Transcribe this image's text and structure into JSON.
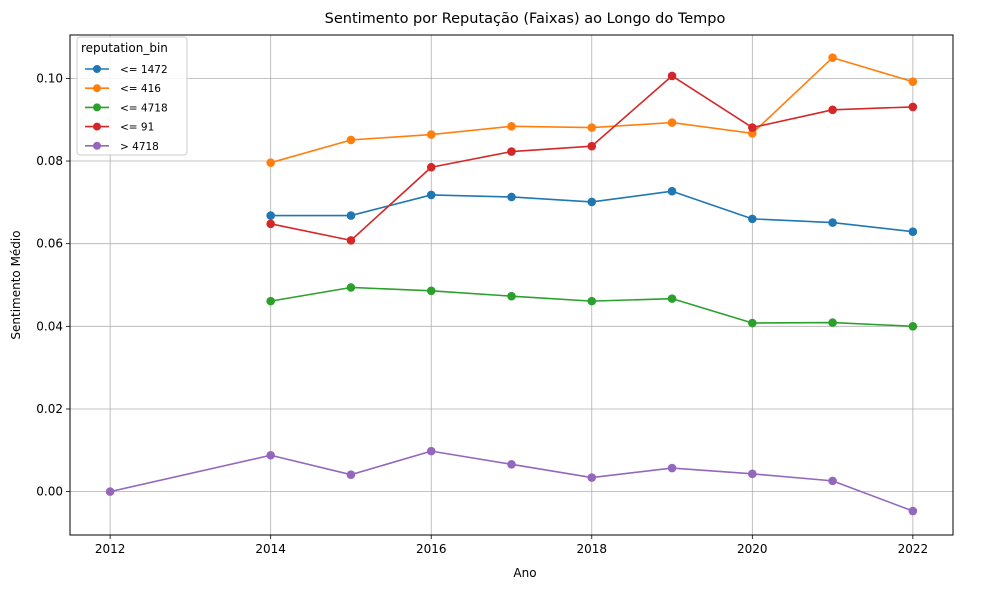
{
  "chart_data": {
    "type": "line",
    "title": "Sentimento por Reputação (Faixas) ao Longo do Tempo",
    "xlabel": "Ano",
    "ylabel": "Sentimento Médio",
    "xlim": [
      2011.5,
      2022.5
    ],
    "ylim": [
      -0.0105,
      0.1105
    ],
    "x_ticks": [
      "2012",
      "2014",
      "2016",
      "2018",
      "2020",
      "2022"
    ],
    "y_ticks": [
      "0.00",
      "0.02",
      "0.04",
      "0.06",
      "0.08",
      "0.10"
    ],
    "grid": true,
    "legend": {
      "title": "reputation_bin",
      "placement": "top-left"
    },
    "series": [
      {
        "name": "<= 1472",
        "color": "#1f77b4",
        "x": [
          2014,
          2015,
          2016,
          2017,
          2018,
          2019,
          2020,
          2021,
          2022
        ],
        "y": [
          0.0668,
          0.0668,
          0.0718,
          0.0713,
          0.0701,
          0.0727,
          0.066,
          0.0651,
          0.0629
        ]
      },
      {
        "name": "<= 416",
        "color": "#ff7f0e",
        "x": [
          2014,
          2015,
          2016,
          2017,
          2018,
          2019,
          2020,
          2021,
          2022
        ],
        "y": [
          0.0796,
          0.0851,
          0.0864,
          0.0884,
          0.0881,
          0.0893,
          0.0867,
          0.105,
          0.0992
        ]
      },
      {
        "name": "<= 4718",
        "color": "#2ca02c",
        "x": [
          2014,
          2015,
          2016,
          2017,
          2018,
          2019,
          2020,
          2021,
          2022
        ],
        "y": [
          0.0461,
          0.0494,
          0.0486,
          0.0473,
          0.0461,
          0.0467,
          0.0408,
          0.0409,
          0.04
        ]
      },
      {
        "name": "<= 91",
        "color": "#d62728",
        "x": [
          2014,
          2015,
          2016,
          2017,
          2018,
          2019,
          2020,
          2021,
          2022
        ],
        "y": [
          0.0648,
          0.0608,
          0.0785,
          0.0823,
          0.0836,
          0.1006,
          0.0881,
          0.0924,
          0.0931
        ]
      },
      {
        "name": "> 4718",
        "color": "#9467bd",
        "x": [
          2012,
          2014,
          2015,
          2016,
          2017,
          2018,
          2019,
          2020,
          2021,
          2022
        ],
        "y": [
          0.0,
          0.0088,
          0.0041,
          0.0098,
          0.0066,
          0.0034,
          0.0057,
          0.0043,
          0.0026,
          -0.0047
        ]
      }
    ]
  }
}
